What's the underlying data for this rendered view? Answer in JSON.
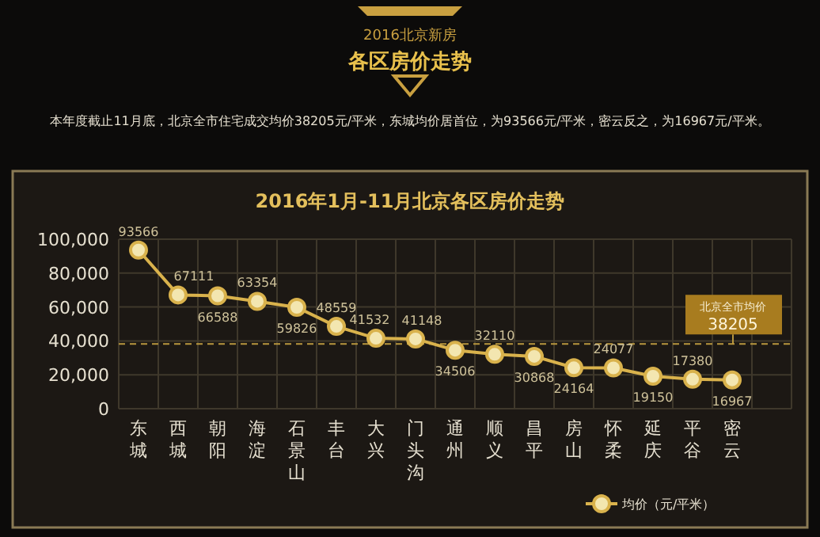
{
  "chart_data": {
    "type": "line",
    "title": "2016年1月-11月北京各区房价走势",
    "annotations": [
      "2016北京新房",
      "各区房价走势",
      "本年度截止11月底，北京全市住宅成交均价38205元/平米，东城均价居首位，为93566元/平米，密云反之，为16967元/平米。",
      {
        "text": "38205",
        "y": 38205
      }
    ],
    "categories": [
      "东城",
      "西城",
      "朝阳",
      "海淀",
      "石景山",
      "丰台",
      "大兴",
      "门头沟",
      "通州",
      "顺义",
      "昌平",
      "房山",
      "怀柔",
      "延庆",
      "平谷",
      "密云",
      null
    ],
    "series": [
      {
        "name": "均价（元/平米）",
        "color": "#d9b24c",
        "values": [
          93566,
          67111,
          66588,
          63354,
          59826,
          48559,
          41532,
          41148,
          34506,
          32110,
          30868,
          24164,
          24077,
          19150,
          17380,
          16967,
          null
        ]
      }
    ],
    "ylim": [
      0,
      100000
    ],
    "yticks": [
      {
        "value": 0,
        "label": "0"
      },
      {
        "value": 20000,
        "label": "20,000"
      },
      {
        "value": 40000,
        "label": "40,000"
      },
      {
        "value": 60000,
        "label": "60,000"
      },
      {
        "value": 80000,
        "label": "80,000"
      },
      {
        "value": 100000,
        "label": "100,000"
      }
    ],
    "ref_lines": [
      {
        "axis": "y",
        "value": 38205,
        "label": "北京全市均价",
        "color": "#b8963e",
        "line_style": "dashed"
      }
    ],
    "grid": true,
    "legend": "bottom right",
    "marker": "circle",
    "line_style": "solid",
    "data_labels": true
  }
}
